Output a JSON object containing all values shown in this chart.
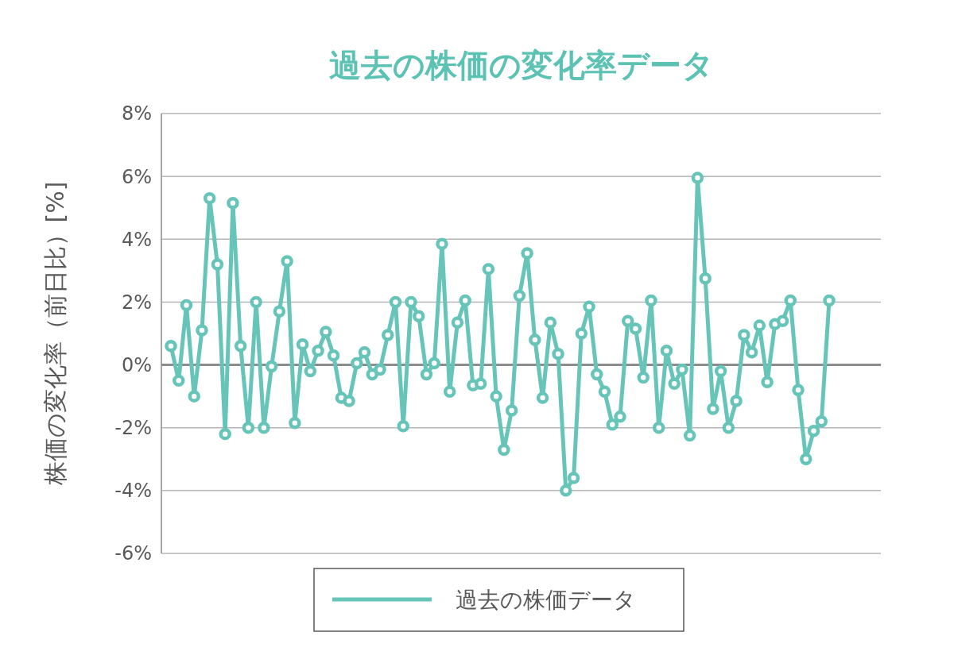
{
  "chart_data": {
    "type": "line",
    "title": "過去の株価の変化率データ",
    "ylabel": "株価の変化率（前日比）[%]",
    "categories": [
      null,
      null,
      null,
      null,
      null,
      null,
      null,
      null,
      null,
      null,
      null,
      null,
      null,
      null,
      null,
      null,
      null,
      null,
      null,
      null,
      null,
      null,
      null,
      null,
      null,
      null,
      null,
      null,
      null,
      null,
      null,
      null,
      null,
      null,
      null,
      null,
      null,
      null,
      null,
      null,
      null,
      null,
      null,
      null,
      null,
      null,
      null,
      null,
      null,
      null,
      null,
      null,
      null,
      null,
      null,
      null,
      null,
      null,
      null,
      null,
      null,
      null,
      null,
      null,
      null,
      null,
      null,
      null,
      null,
      null,
      null,
      null,
      null,
      null,
      null,
      null,
      null,
      null,
      null,
      null,
      null,
      null,
      null,
      null,
      null,
      null
    ],
    "series": [
      {
        "name": "過去の株価データ",
        "color": "#66c5b8",
        "values": [
          0.6,
          -0.5,
          1.9,
          -1.0,
          1.1,
          5.3,
          3.2,
          -2.2,
          5.15,
          0.6,
          -2.0,
          2.0,
          -2.0,
          -0.05,
          1.7,
          3.3,
          -1.85,
          0.65,
          -0.2,
          0.45,
          1.05,
          0.3,
          -1.05,
          -1.15,
          0.05,
          0.4,
          -0.3,
          -0.15,
          0.95,
          2.0,
          -1.95,
          2.0,
          1.55,
          -0.3,
          0.05,
          3.85,
          -0.85,
          1.35,
          2.05,
          -0.65,
          -0.6,
          3.05,
          -1.0,
          -2.7,
          -1.45,
          2.2,
          3.55,
          0.8,
          -1.05,
          1.35,
          0.35,
          -4.0,
          -3.6,
          1.0,
          1.85,
          -0.3,
          -0.85,
          -1.9,
          -1.65,
          1.4,
          1.15,
          -0.4,
          2.05,
          -2.0,
          0.45,
          -0.6,
          -0.15,
          -2.25,
          5.95,
          2.75,
          -1.4,
          -0.2,
          -2.0,
          -1.15,
          0.95,
          0.4,
          1.25,
          -0.55,
          1.3,
          1.4,
          2.05,
          -0.8,
          -3.0,
          -2.1,
          -1.8,
          2.05
        ]
      }
    ],
    "ylim": [
      -6,
      8
    ],
    "yticks": [
      {
        "value": -6,
        "label": "-6%"
      },
      {
        "value": -4,
        "label": "-4%"
      },
      {
        "value": -2,
        "label": "-2%"
      },
      {
        "value": 0,
        "label": "0%"
      },
      {
        "value": 2,
        "label": "2%"
      },
      {
        "value": 4,
        "label": "4%"
      },
      {
        "value": 6,
        "label": "6%"
      },
      {
        "value": 8,
        "label": "8%"
      }
    ],
    "grid": "y",
    "legend": "bottom",
    "marker": "circle",
    "line_style": "solid",
    "tick_labels": "y"
  }
}
